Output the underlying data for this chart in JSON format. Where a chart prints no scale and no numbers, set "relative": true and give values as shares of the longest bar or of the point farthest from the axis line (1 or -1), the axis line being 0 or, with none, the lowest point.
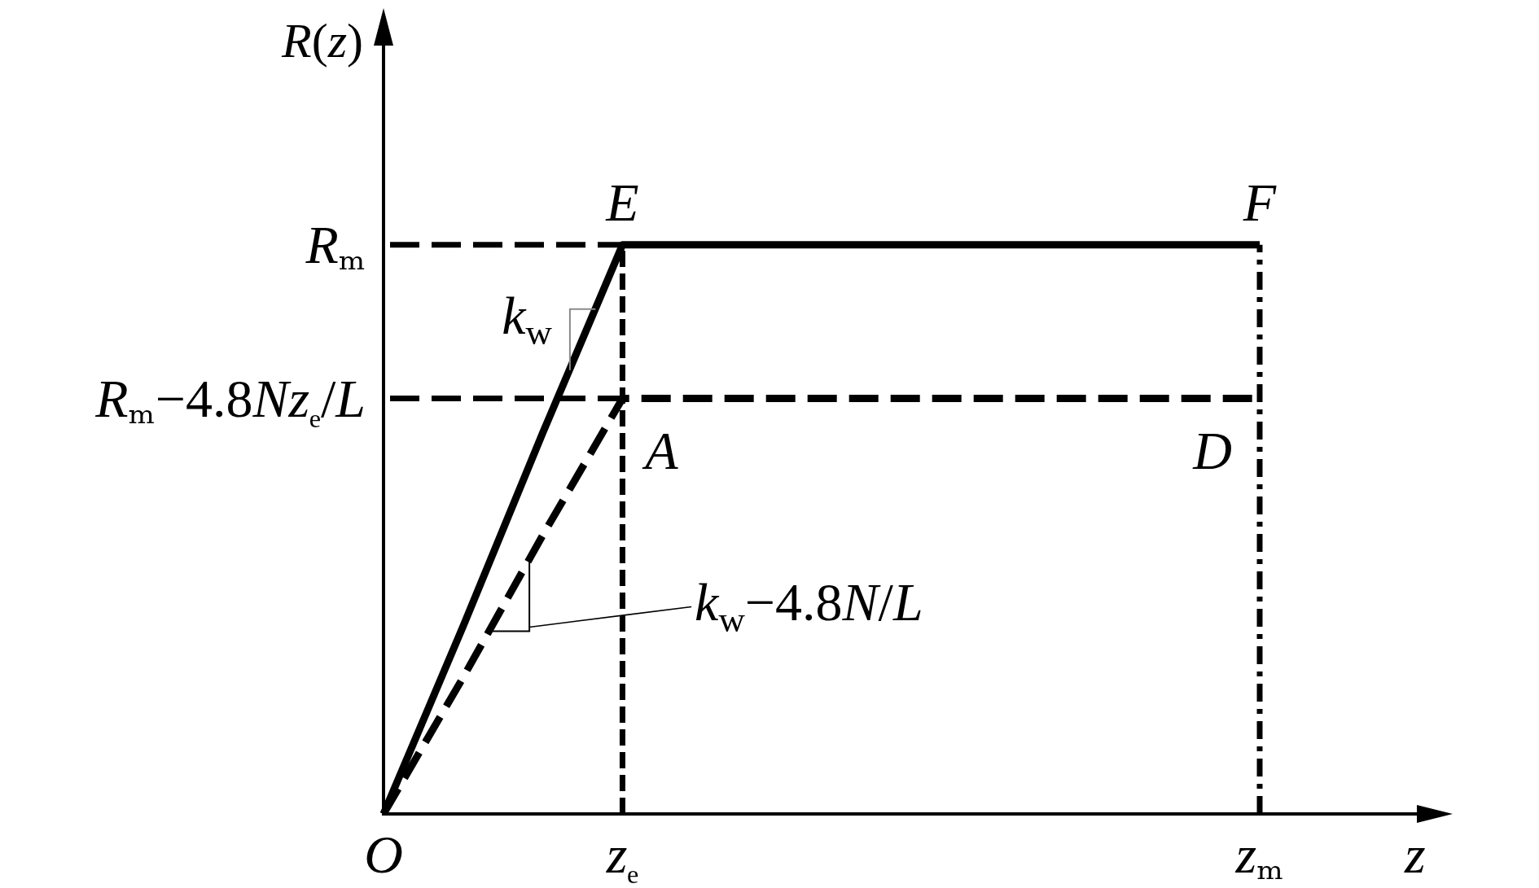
{
  "chart_data": {
    "type": "line",
    "xlabel": "z",
    "ylabel": "R(z)",
    "relative": true,
    "categories": [
      "O",
      null,
      null,
      "zₑ",
      null,
      null,
      null,
      null,
      null,
      null,
      null,
      "zₘ"
    ],
    "series": [
      {
        "color": "#000000",
        "line_style": "solid",
        "values": [
          0,
          0.33,
          0.67,
          1,
          1,
          1,
          1,
          1,
          1,
          1,
          1,
          1
        ]
      },
      {
        "color": "#000000",
        "line_style": "dashed",
        "values": [
          0,
          0.24,
          0.49,
          0.73,
          0.73,
          0.73,
          0.73,
          0.73,
          0.73,
          0.73,
          0.73,
          0.73
        ]
      }
    ],
    "ref_lines": [
      {
        "axis": "y",
        "value": 1,
        "label": "Rₘ",
        "line_style": "dashed",
        "color": "#000000"
      },
      {
        "axis": "y",
        "value": 0.73,
        "label": "Rₘ−4.8Nzₑ/L",
        "line_style": "dashed",
        "color": "#000000"
      },
      {
        "axis": "x",
        "value": "zₑ",
        "line_style": "dotted",
        "color": "#000000"
      },
      {
        "axis": "x",
        "value": "zₘ",
        "line_style": "dashdot",
        "color": "#000000"
      }
    ],
    "annotations": [
      {
        "text": "E",
        "x": "zₑ",
        "y": 1
      },
      {
        "text": "F",
        "x": "zₘ",
        "y": 1
      },
      {
        "text": "A",
        "x": "zₑ",
        "y": 0.73
      },
      {
        "text": "D",
        "x": "zₘ",
        "y": 0.73
      },
      "k$_{w}$",
      "k$_{w}$−4.8N/L"
    ]
  }
}
